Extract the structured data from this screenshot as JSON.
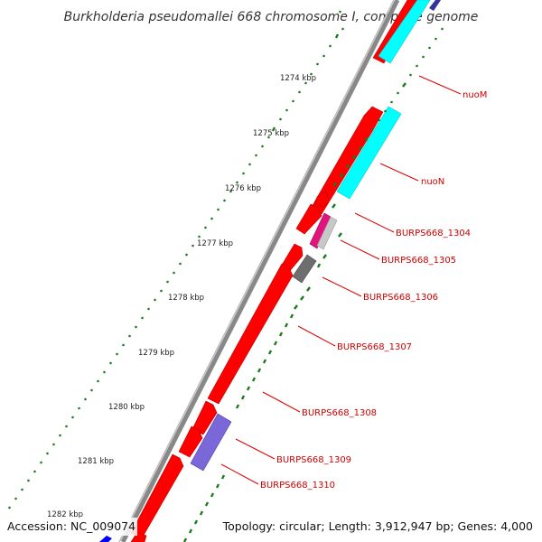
{
  "title": "Burkholderia pseudomallei 668 chromosome I, complete genome",
  "footer": {
    "accession": "Accession: NC_009074",
    "summary": "Topology: circular; Length: 3,912,947 bp; Genes: 4,000"
  },
  "scale_labels": [
    "1274 kbp",
    "1275 kbp",
    "1276 kbp",
    "1277 kbp",
    "1278 kbp",
    "1279 kbp",
    "1280 kbp",
    "1281 kbp",
    "1282 kbp"
  ],
  "gene_labels": [
    "nuoM",
    "nuoN",
    "BURPS668_1304",
    "BURPS668_1305",
    "BURPS668_1306",
    "BURPS668_1307",
    "BURPS668_1308",
    "BURPS668_1309",
    "BURPS668_1310"
  ],
  "colors": {
    "forward_cds": "#ff0000",
    "cog_cyan": "#00ffff",
    "cog_magenta": "#e0147c",
    "cog_gray": "#6e6e6e",
    "cog_light_gray": "#c8c8c8",
    "cog_purple": "#7b68d8",
    "cog_blue": "#0000ff",
    "backbone": "#888888",
    "tick": "#1a7a1a",
    "label": "#cc0000"
  }
}
